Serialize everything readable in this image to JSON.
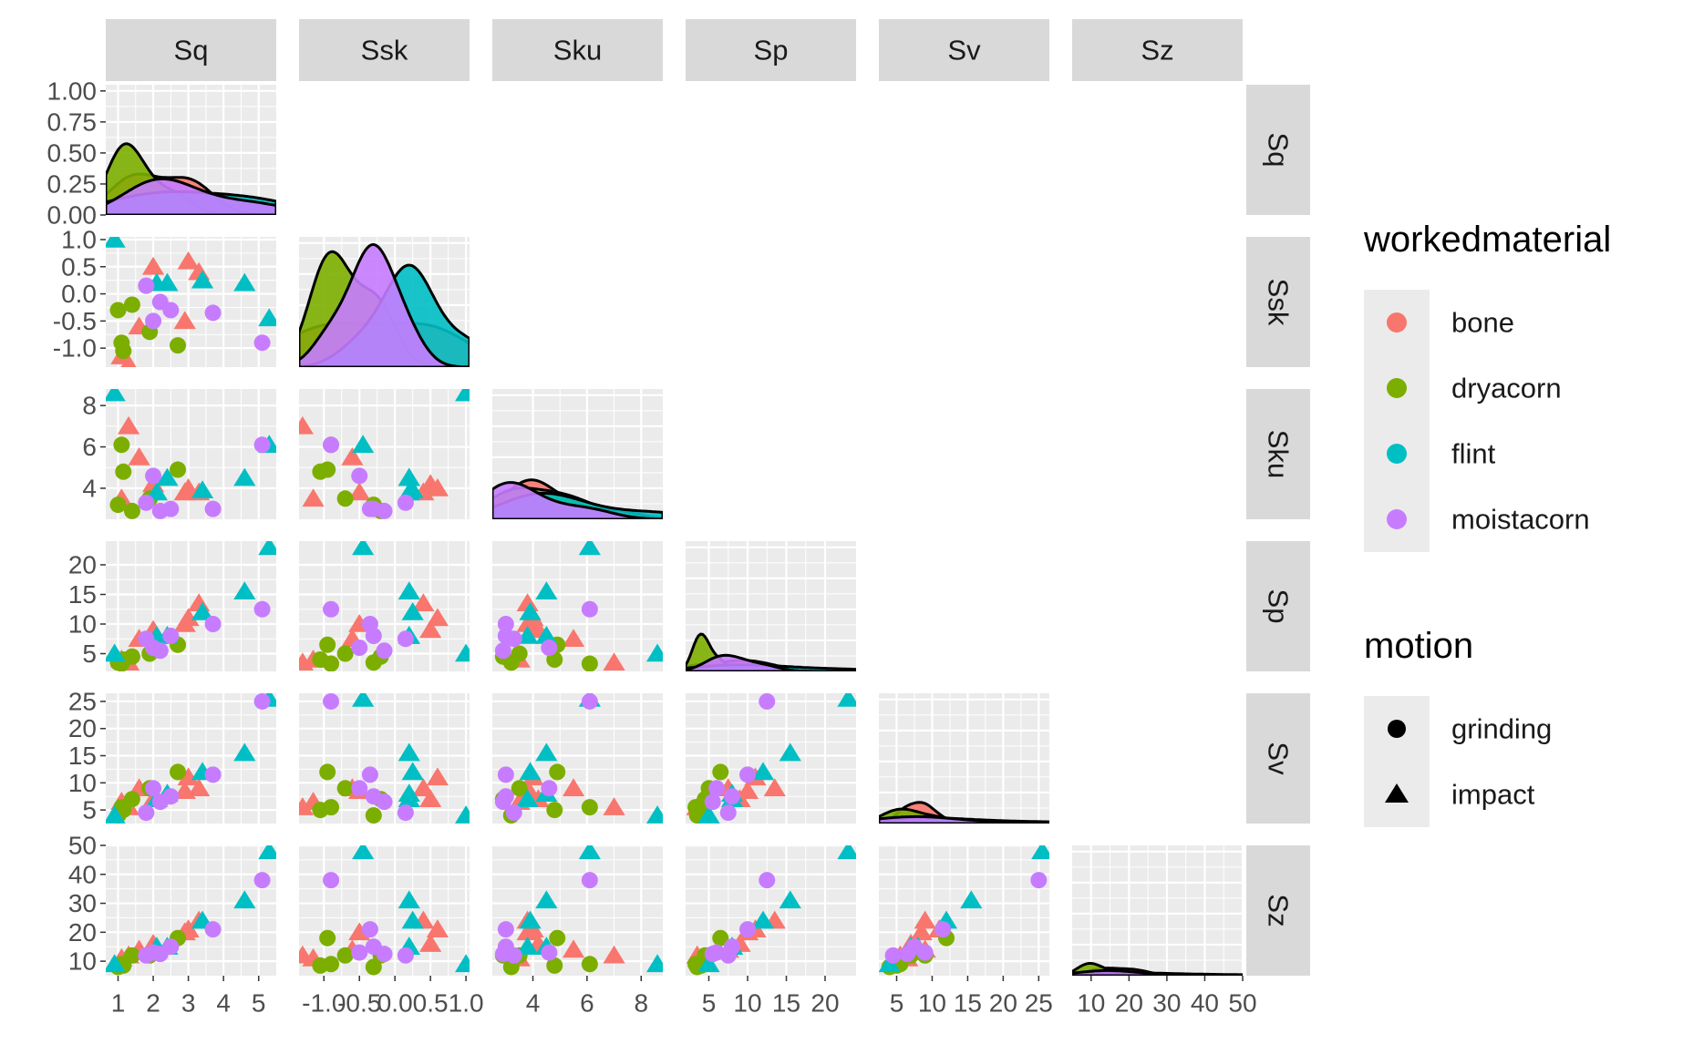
{
  "chart_data": {
    "type": "scatter",
    "variables": [
      "Sq",
      "Ssk",
      "Sku",
      "Sp",
      "Sv",
      "Sz"
    ],
    "axis_ranges": {
      "Sq": [
        0.65,
        5.5
      ],
      "Ssk": [
        -1.35,
        1.05
      ],
      "Sku": [
        2.5,
        8.8
      ],
      "Sp": [
        2.0,
        24.0
      ],
      "Sv": [
        2.5,
        26.5
      ],
      "Sz": [
        5.0,
        50.0
      ]
    },
    "ticks": {
      "Sq": [
        {
          "v": 1,
          "label": "1"
        },
        {
          "v": 2,
          "label": "2"
        },
        {
          "v": 3,
          "label": "3"
        },
        {
          "v": 4,
          "label": "4"
        },
        {
          "v": 5,
          "label": "5"
        }
      ],
      "Ssk": [
        {
          "v": -1.0,
          "label": "-1.0"
        },
        {
          "v": -0.5,
          "label": "-0.5"
        },
        {
          "v": 0.0,
          "label": "0.0"
        },
        {
          "v": 0.5,
          "label": "0.5"
        },
        {
          "v": 1.0,
          "label": "1.0"
        }
      ],
      "Sku": [
        {
          "v": 4,
          "label": "4"
        },
        {
          "v": 6,
          "label": "6"
        },
        {
          "v": 8,
          "label": "8"
        }
      ],
      "Sp": [
        {
          "v": 5,
          "label": "5"
        },
        {
          "v": 10,
          "label": "10"
        },
        {
          "v": 15,
          "label": "15"
        },
        {
          "v": 20,
          "label": "20"
        }
      ],
      "Sv": [
        {
          "v": 5,
          "label": "5"
        },
        {
          "v": 10,
          "label": "10"
        },
        {
          "v": 15,
          "label": "15"
        },
        {
          "v": 20,
          "label": "20"
        },
        {
          "v": 25,
          "label": "25"
        }
      ],
      "Sz": [
        {
          "v": 10,
          "label": "10"
        },
        {
          "v": 20,
          "label": "20"
        },
        {
          "v": 30,
          "label": "30"
        },
        {
          "v": 40,
          "label": "40"
        },
        {
          "v": 50,
          "label": "50"
        }
      ]
    },
    "density_axis": {
      "range": [
        0.0,
        1.05
      ],
      "ticks": [
        {
          "v": 0.0,
          "label": "0.00"
        },
        {
          "v": 0.25,
          "label": "0.25"
        },
        {
          "v": 0.5,
          "label": "0.50"
        },
        {
          "v": 0.75,
          "label": "0.75"
        },
        {
          "v": 1.0,
          "label": "1.00"
        }
      ]
    },
    "groups": [
      {
        "name": "bone",
        "color": "#F8766D"
      },
      {
        "name": "dryacorn",
        "color": "#7CAE00"
      },
      {
        "name": "flint",
        "color": "#00BFC4"
      },
      {
        "name": "moistacorn",
        "color": "#C77CFF"
      }
    ],
    "legend": {
      "placement": "right",
      "color_title": "workedmaterial",
      "shape_title": "motion",
      "shapes": [
        {
          "name": "grinding",
          "symbol": "circle-icon"
        },
        {
          "name": "impact",
          "symbol": "triangle-icon"
        }
      ]
    },
    "points": [
      {
        "group": "bone",
        "motion": "impact",
        "values": [
          3.0,
          0.6,
          4.0,
          11.0,
          11.0,
          21.0
        ]
      },
      {
        "group": "bone",
        "motion": "impact",
        "values": [
          3.3,
          0.4,
          3.8,
          13.5,
          9.0,
          24.0
        ]
      },
      {
        "group": "bone",
        "motion": "impact",
        "values": [
          2.9,
          -0.5,
          3.8,
          10.0,
          8.5,
          20.0
        ]
      },
      {
        "group": "bone",
        "motion": "impact",
        "values": [
          2.0,
          0.5,
          4.2,
          9.0,
          7.0,
          16.0
        ]
      },
      {
        "group": "bone",
        "motion": "impact",
        "values": [
          1.6,
          -0.6,
          5.5,
          7.5,
          9.0,
          14.0
        ]
      },
      {
        "group": "bone",
        "motion": "impact",
        "values": [
          1.3,
          -1.3,
          7.0,
          3.5,
          5.5,
          12.0
        ]
      },
      {
        "group": "bone",
        "motion": "impact",
        "values": [
          1.1,
          -1.15,
          3.5,
          4.0,
          6.5,
          11.0
        ]
      },
      {
        "group": "dryacorn",
        "motion": "grinding",
        "values": [
          1.0,
          -0.3,
          3.2,
          3.5,
          4.0,
          8.0
        ]
      },
      {
        "group": "dryacorn",
        "motion": "grinding",
        "values": [
          1.1,
          -0.9,
          6.1,
          3.3,
          5.5,
          9.0
        ]
      },
      {
        "group": "dryacorn",
        "motion": "grinding",
        "values": [
          1.15,
          -1.05,
          4.8,
          4.0,
          5.0,
          8.5
        ]
      },
      {
        "group": "dryacorn",
        "motion": "grinding",
        "values": [
          1.4,
          -0.2,
          2.9,
          4.5,
          7.0,
          12.0
        ]
      },
      {
        "group": "dryacorn",
        "motion": "grinding",
        "values": [
          1.9,
          -0.7,
          3.5,
          5.0,
          9.0,
          12.0
        ]
      },
      {
        "group": "dryacorn",
        "motion": "grinding",
        "values": [
          2.7,
          -0.95,
          4.9,
          6.5,
          12.0,
          18.0
        ]
      },
      {
        "group": "flint",
        "motion": "impact",
        "values": [
          0.9,
          1.0,
          8.6,
          5.0,
          4.0,
          9.0
        ]
      },
      {
        "group": "flint",
        "motion": "impact",
        "values": [
          2.1,
          0.2,
          3.8,
          8.0,
          7.0,
          15.0
        ]
      },
      {
        "group": "flint",
        "motion": "impact",
        "values": [
          2.4,
          0.2,
          4.5,
          8.0,
          8.0,
          15.0
        ]
      },
      {
        "group": "flint",
        "motion": "impact",
        "values": [
          3.4,
          0.25,
          3.9,
          12.0,
          12.0,
          24.0
        ]
      },
      {
        "group": "flint",
        "motion": "impact",
        "values": [
          4.6,
          0.2,
          4.5,
          15.5,
          15.5,
          31.0
        ]
      },
      {
        "group": "flint",
        "motion": "impact",
        "values": [
          5.3,
          -0.45,
          6.1,
          23.0,
          25.5,
          48.0
        ]
      },
      {
        "group": "moistacorn",
        "motion": "grinding",
        "values": [
          1.8,
          0.15,
          3.3,
          7.5,
          4.5,
          12.0
        ]
      },
      {
        "group": "moistacorn",
        "motion": "grinding",
        "values": [
          2.0,
          -0.5,
          4.6,
          6.0,
          9.0,
          13.0
        ]
      },
      {
        "group": "moistacorn",
        "motion": "grinding",
        "values": [
          2.2,
          -0.15,
          2.9,
          5.5,
          6.5,
          12.5
        ]
      },
      {
        "group": "moistacorn",
        "motion": "grinding",
        "values": [
          2.5,
          -0.3,
          3.0,
          8.0,
          7.5,
          15.0
        ]
      },
      {
        "group": "moistacorn",
        "motion": "grinding",
        "values": [
          3.7,
          -0.35,
          3.0,
          10.0,
          11.5,
          21.0
        ]
      },
      {
        "group": "moistacorn",
        "motion": "grinding",
        "values": [
          5.1,
          -0.9,
          6.1,
          12.5,
          25.0,
          38.0
        ]
      }
    ]
  }
}
